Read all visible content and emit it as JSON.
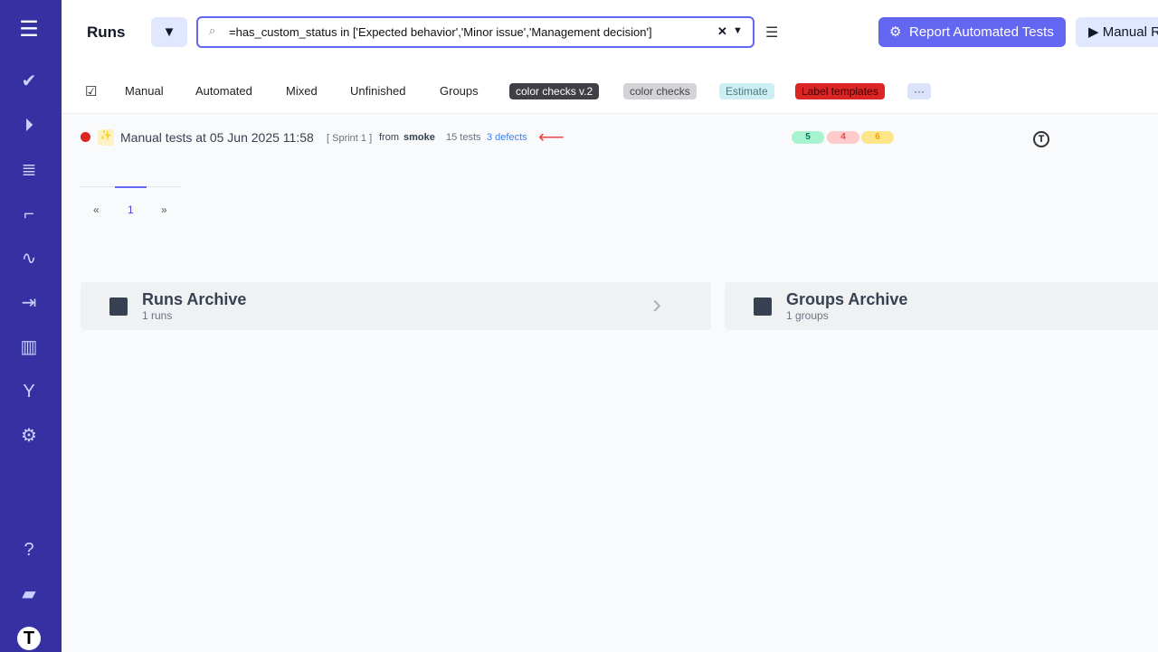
{
  "sidebar": {
    "icons": [
      "menu-icon",
      "check-icon",
      "play-icon",
      "checklist-icon",
      "stairs-icon",
      "pulse-icon",
      "import-icon",
      "chart-icon",
      "branch-icon",
      "gear-icon",
      "help-icon",
      "folder-icon",
      "testomat-logo-icon"
    ]
  },
  "header": {
    "title": "Runs",
    "search_value": "=has_custom_status in ['Expected behavior','Minor issue','Management decision']",
    "report_label": "Report Automated Tests",
    "manual_label": "Manual R"
  },
  "tabs": [
    "Manual",
    "Automated",
    "Mixed",
    "Unfinished",
    "Groups"
  ],
  "labels": [
    {
      "text": "color checks v.2",
      "bg": "#3f3f46",
      "fg": "#ffffff"
    },
    {
      "text": "color checks",
      "bg": "#d4d4d8",
      "fg": "#444444"
    },
    {
      "text": "Estimate",
      "bg": "#cdeef3",
      "fg": "#4b7b84"
    },
    {
      "text": "Label templates",
      "bg": "#dc2626",
      "fg": "#3b0000"
    }
  ],
  "more_label": "···",
  "run": {
    "title": "Manual tests at 05 Jun 2025 11:58",
    "sprint": "[ Sprint 1 ]",
    "from_prefix": "from",
    "from": "smoke",
    "tests": "15 tests",
    "defects": "3 defects",
    "passed": "5",
    "failed": "4",
    "skipped": "6"
  },
  "pager": {
    "prev": "«",
    "page": "1",
    "next": "»"
  },
  "archives": [
    {
      "title": "Runs Archive",
      "sub": "1 runs"
    },
    {
      "title": "Groups Archive",
      "sub": "1 groups"
    }
  ]
}
